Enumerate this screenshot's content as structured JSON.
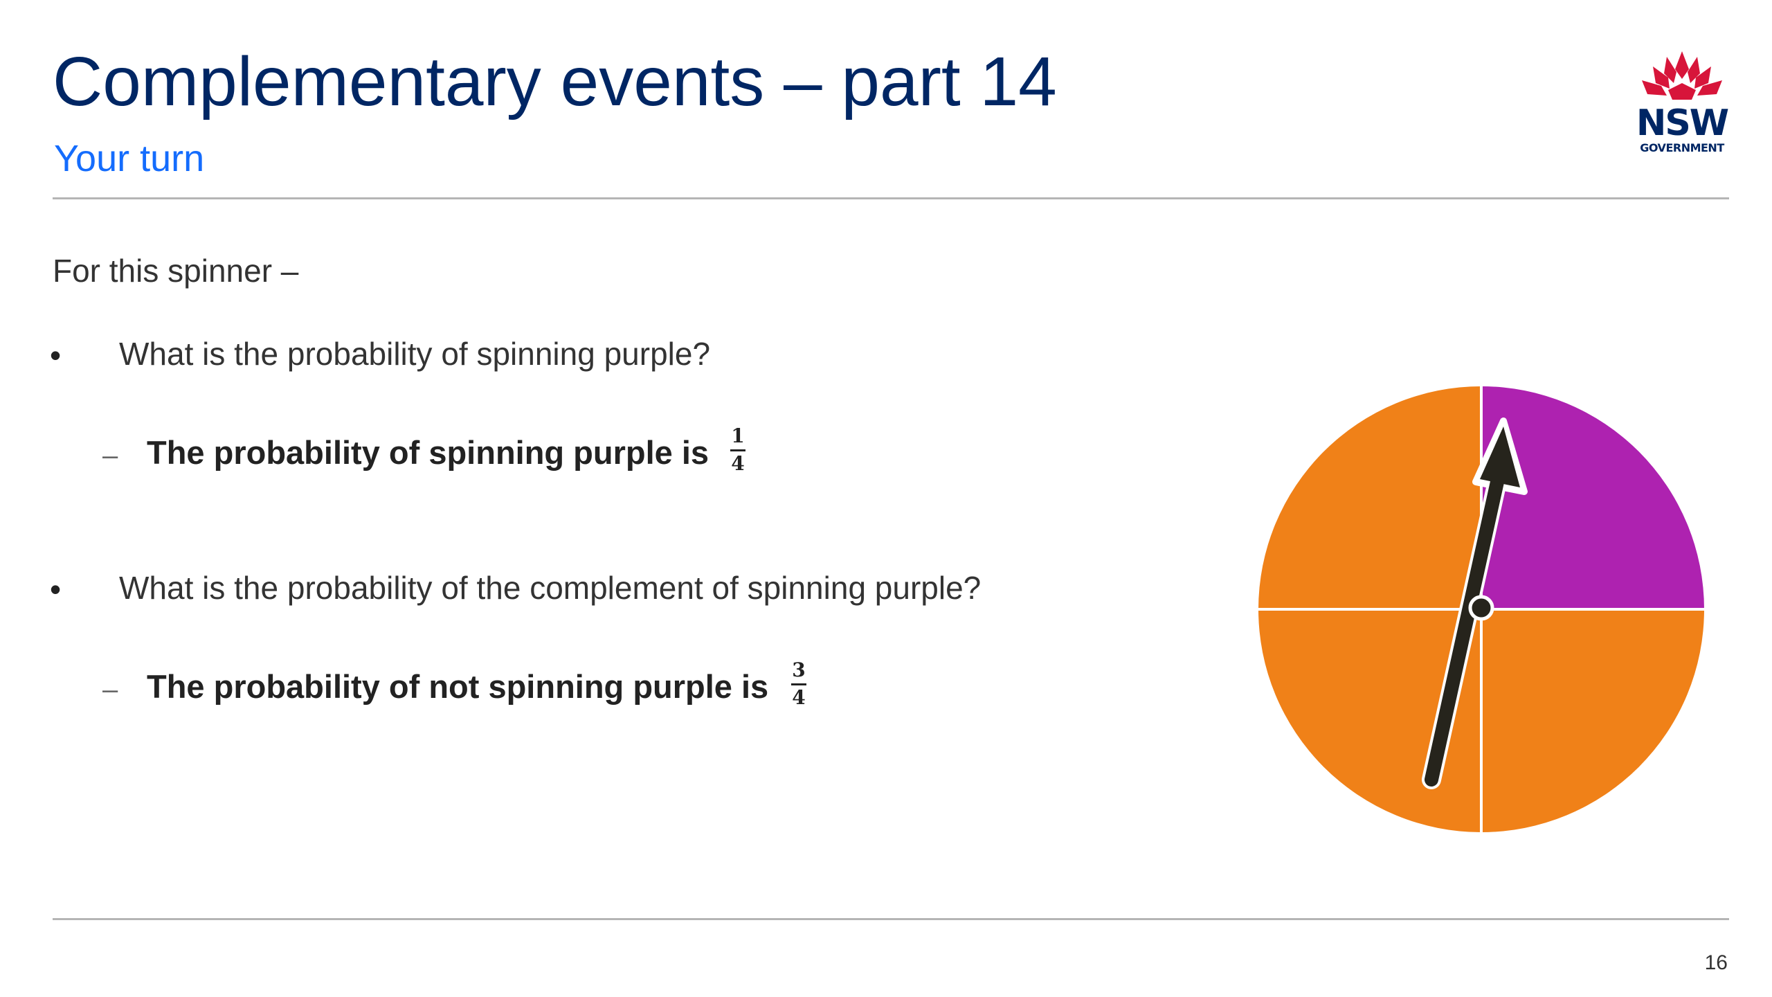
{
  "slide": {
    "title": "Complementary events – part 14",
    "subtitle": "Your turn",
    "page_number": "16"
  },
  "logo": {
    "wordmark": "NSW",
    "subtext": "GOVERNMENT",
    "icon": "waratah-icon",
    "color": "#d7153a"
  },
  "content": {
    "intro": "For this spinner –",
    "bullet_symbol": "•",
    "dash_symbol": "–",
    "questions": [
      {
        "question": "What is the probability of spinning purple?",
        "answer": "The probability of spinning purple is",
        "fraction": {
          "numerator": "1",
          "denominator": "4"
        }
      },
      {
        "question": "What is the probability of the complement of spinning purple?",
        "answer": "The probability of not spinning purple is",
        "fraction": {
          "numerator": "3",
          "denominator": "4"
        }
      }
    ]
  },
  "spinner": {
    "sections": [
      {
        "position": "top-right",
        "color": "#ae22b0",
        "name": "purple"
      },
      {
        "position": "top-left",
        "color": "#f08118",
        "name": "orange"
      },
      {
        "position": "bottom-left",
        "color": "#f08118",
        "name": "orange"
      },
      {
        "position": "bottom-right",
        "color": "#f08118",
        "name": "orange"
      }
    ],
    "pointer_color": "#26241c",
    "pointer_points_to": "purple"
  },
  "colors": {
    "title": "#002664",
    "subtitle": "#146cfd",
    "rule": "#b5b5b5"
  }
}
